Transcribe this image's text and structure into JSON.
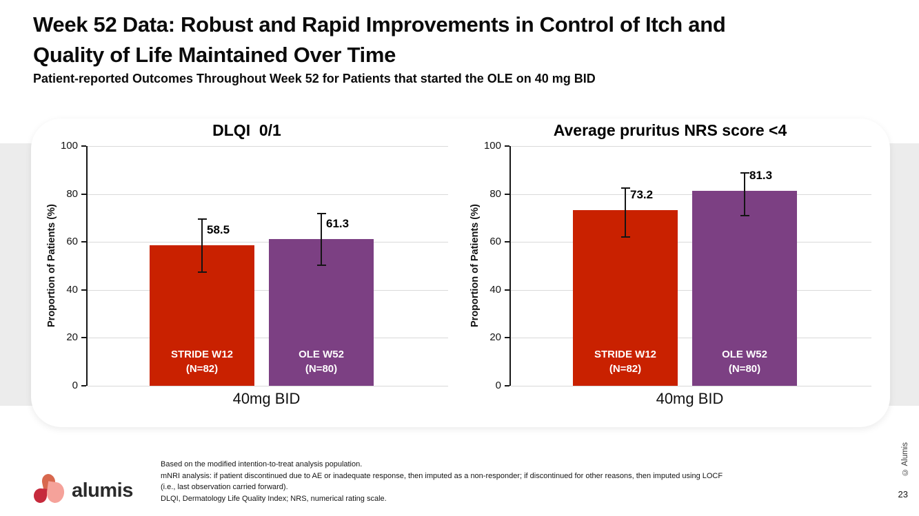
{
  "slide": {
    "title_line1": "Week 52 Data: Robust and Rapid Improvements in Control of Itch and",
    "title_line2": "Quality of Life Maintained Over Time",
    "subtitle": "Patient-reported Outcomes Throughout Week 52 for Patients that started the OLE on 40 mg BID",
    "logo_text": "alumis",
    "copyright": "© Alumis",
    "page_number": "23"
  },
  "footnotes": [
    "Based on the modified intention-to-treat analysis population.",
    "mNRI analysis: if patient discontinued due to AE or inadequate response, then imputed as a non-responder; if discontinued for other reasons, then imputed using LOCF",
    "(i.e., last observation carried forward).",
    "DLQI, Dermatology Life Quality Index; NRS, numerical rating scale."
  ],
  "colors": {
    "stride_red": "#C92100",
    "ole_purple": "#7C4083",
    "gridline": "#D9D9D9",
    "axis": "#161616",
    "background_band": "#ECECEC"
  },
  "chart_data": [
    {
      "type": "bar",
      "title": "DLQI  0/1",
      "ylabel": "Proportion of Patients (%)",
      "group_label": "40mg BID",
      "ylim": [
        0,
        100
      ],
      "yticks": [
        0,
        20,
        40,
        60,
        80,
        100
      ],
      "grid": true,
      "legend_position": "none",
      "bars": [
        {
          "name": "STRIDE W12",
          "n_label": "(N=82)",
          "value": 58.5,
          "err_low": 47.3,
          "err_high": 69.4,
          "color": "#C92100"
        },
        {
          "name": "OLE W52",
          "n_label": "(N=80)",
          "value": 61.3,
          "err_low": 50.2,
          "err_high": 71.9,
          "color": "#7C4083"
        }
      ]
    },
    {
      "type": "bar",
      "title": "Average pruritus NRS score <4",
      "ylabel": "Proportion of Patients (%)",
      "group_label": "40mg BID",
      "ylim": [
        0,
        100
      ],
      "yticks": [
        0,
        20,
        40,
        60,
        80,
        100
      ],
      "grid": true,
      "legend_position": "none",
      "bars": [
        {
          "name": "STRIDE W12",
          "n_label": "(N=82)",
          "value": 73.2,
          "err_low": 62.2,
          "err_high": 82.5,
          "color": "#C92100"
        },
        {
          "name": "OLE W52",
          "n_label": "(N=80)",
          "value": 81.3,
          "err_low": 71.0,
          "err_high": 88.9,
          "color": "#7C4083"
        }
      ]
    }
  ]
}
